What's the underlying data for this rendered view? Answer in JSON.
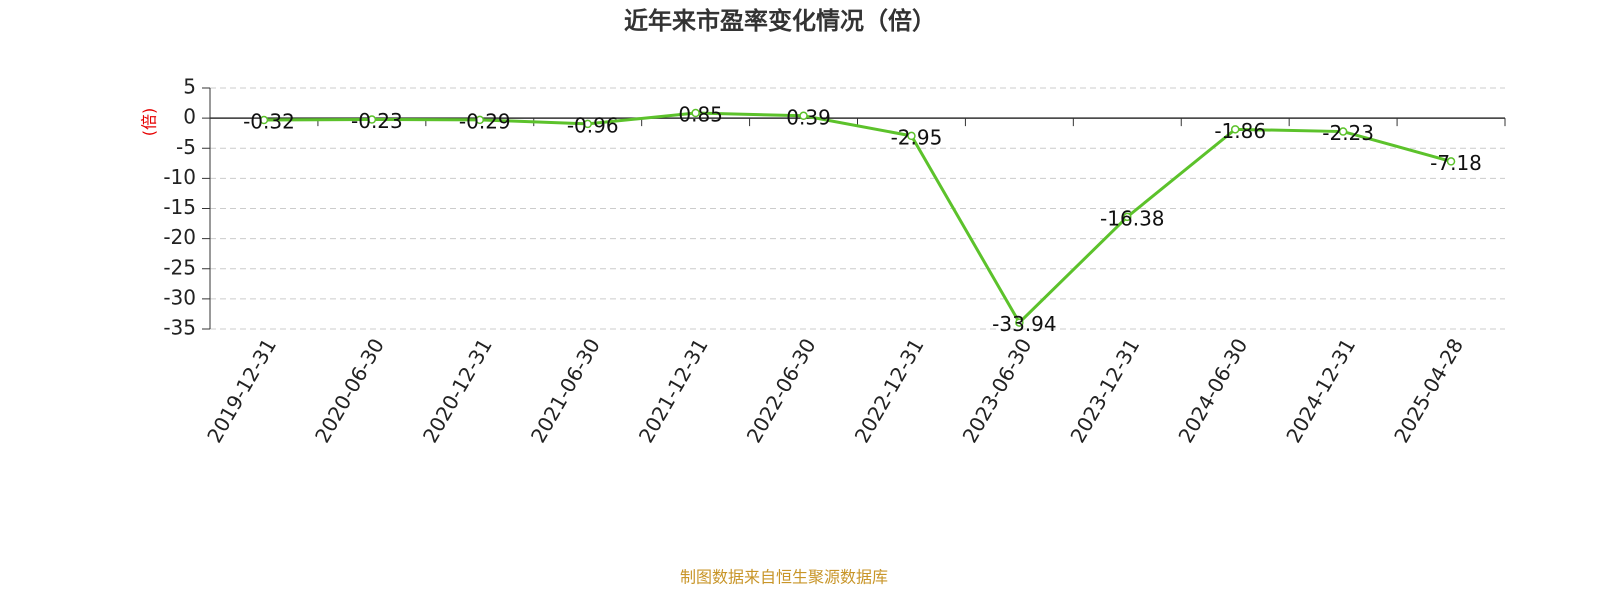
{
  "chart_data": {
    "type": "line",
    "title": "近年来市盈率变化情况（倍）",
    "ylabel": "(倍)",
    "categories": [
      "2019-12-31",
      "2020-06-30",
      "2020-12-31",
      "2021-06-30",
      "2021-12-31",
      "2022-06-30",
      "2022-12-31",
      "2023-06-30",
      "2023-12-31",
      "2024-06-30",
      "2024-12-31",
      "2025-04-28"
    ],
    "series": [
      {
        "name": "市盈率",
        "color": "#5cc22b",
        "values": [
          -0.32,
          -0.23,
          -0.29,
          -0.96,
          0.85,
          0.39,
          -2.95,
          -33.94,
          -16.38,
          -1.86,
          -2.23,
          -7.18
        ]
      }
    ],
    "ylim": [
      -35,
      5
    ],
    "yticks": [
      -35,
      -30,
      -25,
      -20,
      -15,
      -10,
      -5,
      0,
      5
    ],
    "grid": true,
    "source": "制图数据来自恒生聚源数据库"
  }
}
